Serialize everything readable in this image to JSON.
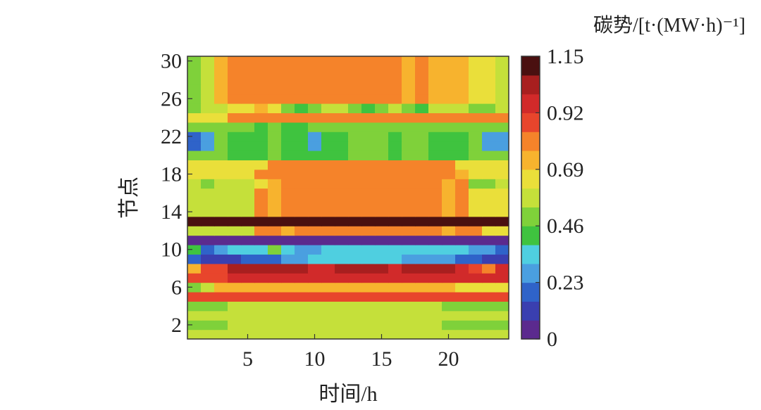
{
  "chart_data": {
    "type": "heatmap",
    "title": "",
    "xlabel": "时间/h",
    "ylabel": "节点",
    "x_range": [
      1,
      24
    ],
    "y_range": [
      1,
      30
    ],
    "x_ticks": [
      5,
      10,
      15,
      20
    ],
    "y_ticks": [
      2,
      6,
      10,
      14,
      18,
      22,
      26,
      30
    ],
    "colorbar": {
      "title": "碳势/[t·(MW·h)⁻¹]",
      "range": [
        0,
        1.15
      ],
      "ticks": [
        {
          "value": 0,
          "label": "0"
        },
        {
          "value": 0.23,
          "label": "0.23"
        },
        {
          "value": 0.46,
          "label": "0.46"
        },
        {
          "value": 0.69,
          "label": "0.69"
        },
        {
          "value": 0.92,
          "label": "0.92"
        },
        {
          "value": 1.15,
          "label": "1.15"
        }
      ],
      "colors": [
        "#5b2a8e",
        "#3a3fb0",
        "#2f63c9",
        "#4a9fe0",
        "#4fcfe0",
        "#3fc33f",
        "#7fd13a",
        "#c5e03a",
        "#eadf3a",
        "#f7b32e",
        "#f5832a",
        "#e8452c",
        "#d12a2a",
        "#a81f1f",
        "#4a1010"
      ]
    },
    "values_by_node": {
      "1": [
        0.56,
        0.56,
        0.56,
        0.56,
        0.56,
        0.56,
        0.56,
        0.56,
        0.56,
        0.56,
        0.56,
        0.56,
        0.56,
        0.56,
        0.56,
        0.56,
        0.56,
        0.56,
        0.56,
        0.56,
        0.56,
        0.56,
        0.56,
        0.56
      ],
      "2": [
        0.51,
        0.51,
        0.51,
        0.56,
        0.56,
        0.56,
        0.56,
        0.56,
        0.56,
        0.56,
        0.56,
        0.56,
        0.56,
        0.56,
        0.56,
        0.56,
        0.56,
        0.56,
        0.56,
        0.51,
        0.51,
        0.51,
        0.51,
        0.51
      ],
      "3": [
        0.56,
        0.56,
        0.56,
        0.56,
        0.56,
        0.56,
        0.56,
        0.56,
        0.56,
        0.56,
        0.56,
        0.56,
        0.56,
        0.56,
        0.56,
        0.56,
        0.56,
        0.56,
        0.56,
        0.56,
        0.56,
        0.56,
        0.56,
        0.56
      ],
      "4": [
        0.51,
        0.51,
        0.51,
        0.56,
        0.56,
        0.56,
        0.56,
        0.56,
        0.56,
        0.56,
        0.56,
        0.56,
        0.56,
        0.56,
        0.56,
        0.56,
        0.56,
        0.56,
        0.56,
        0.51,
        0.51,
        0.51,
        0.51,
        0.51
      ],
      "5": [
        0.88,
        0.88,
        0.88,
        0.88,
        0.88,
        0.88,
        0.88,
        0.88,
        0.88,
        0.88,
        0.88,
        0.88,
        0.88,
        0.88,
        0.88,
        0.88,
        0.88,
        0.88,
        0.88,
        0.88,
        0.88,
        0.88,
        0.88,
        0.88
      ],
      "6": [
        0.51,
        0.58,
        0.72,
        0.72,
        0.72,
        0.72,
        0.72,
        0.72,
        0.72,
        0.72,
        0.72,
        0.72,
        0.72,
        0.72,
        0.76,
        0.72,
        0.72,
        0.72,
        0.72,
        0.72,
        0.62,
        0.62,
        0.62,
        0.62
      ],
      "7": [
        0.88,
        0.88,
        0.88,
        0.96,
        0.96,
        0.96,
        0.96,
        0.96,
        0.96,
        0.96,
        0.96,
        0.96,
        0.96,
        0.96,
        0.96,
        0.96,
        0.96,
        0.96,
        0.96,
        0.96,
        0.96,
        0.96,
        0.96,
        0.96
      ],
      "8": [
        0.74,
        0.88,
        0.88,
        1.02,
        1.02,
        1.02,
        1.02,
        1.05,
        1.02,
        0.96,
        0.96,
        1.02,
        1.02,
        1.02,
        1.02,
        0.96,
        1.02,
        1.05,
        1.02,
        1.02,
        0.96,
        0.88,
        0.8,
        0.92
      ],
      "9": [
        0.18,
        0.12,
        0.12,
        0.14,
        0.16,
        0.16,
        0.18,
        0.24,
        0.26,
        0.32,
        0.38,
        0.38,
        0.38,
        0.38,
        0.38,
        0.32,
        0.26,
        0.26,
        0.3,
        0.26,
        0.22,
        0.18,
        0.14,
        0.12
      ],
      "10": [
        0.42,
        0.22,
        0.3,
        0.38,
        0.38,
        0.38,
        0.5,
        0.38,
        0.28,
        0.28,
        0.38,
        0.38,
        0.38,
        0.38,
        0.38,
        0.38,
        0.38,
        0.38,
        0.38,
        0.38,
        0.38,
        0.28,
        0.28,
        0.16
      ],
      "11": [
        0.06,
        0.06,
        0.06,
        0.06,
        0.06,
        0.06,
        0.06,
        0.06,
        0.06,
        0.06,
        0.06,
        0.06,
        0.06,
        0.06,
        0.06,
        0.06,
        0.06,
        0.06,
        0.06,
        0.06,
        0.06,
        0.06,
        0.06,
        0.06
      ],
      "12": [
        0.6,
        0.6,
        0.6,
        0.6,
        0.6,
        0.82,
        0.82,
        0.72,
        0.82,
        0.82,
        0.82,
        0.82,
        0.82,
        0.82,
        0.82,
        0.82,
        0.82,
        0.82,
        0.82,
        0.72,
        0.82,
        0.82,
        0.62,
        0.62
      ],
      "13": [
        1.12,
        1.12,
        1.12,
        1.12,
        1.12,
        1.12,
        1.12,
        1.12,
        1.12,
        1.12,
        1.12,
        1.12,
        1.12,
        1.12,
        1.12,
        1.12,
        1.12,
        1.12,
        1.12,
        1.12,
        1.12,
        1.12,
        1.12,
        1.12
      ],
      "14": [
        0.6,
        0.6,
        0.6,
        0.6,
        0.6,
        0.82,
        0.72,
        0.82,
        0.82,
        0.82,
        0.82,
        0.82,
        0.82,
        0.82,
        0.82,
        0.82,
        0.82,
        0.82,
        0.82,
        0.72,
        0.82,
        0.62,
        0.62,
        0.62
      ],
      "15": [
        0.6,
        0.6,
        0.6,
        0.6,
        0.6,
        0.82,
        0.72,
        0.82,
        0.82,
        0.82,
        0.82,
        0.82,
        0.82,
        0.82,
        0.82,
        0.82,
        0.82,
        0.82,
        0.82,
        0.72,
        0.82,
        0.62,
        0.62,
        0.62
      ],
      "16": [
        0.6,
        0.6,
        0.6,
        0.6,
        0.6,
        0.82,
        0.72,
        0.82,
        0.82,
        0.82,
        0.82,
        0.82,
        0.82,
        0.82,
        0.82,
        0.82,
        0.82,
        0.82,
        0.82,
        0.72,
        0.82,
        0.62,
        0.62,
        0.62
      ],
      "17": [
        0.55,
        0.48,
        0.58,
        0.58,
        0.58,
        0.62,
        0.72,
        0.82,
        0.82,
        0.82,
        0.82,
        0.82,
        0.82,
        0.82,
        0.82,
        0.82,
        0.82,
        0.82,
        0.82,
        0.72,
        0.82,
        0.52,
        0.5,
        0.55
      ],
      "18": [
        0.62,
        0.62,
        0.62,
        0.62,
        0.62,
        0.84,
        0.84,
        0.84,
        0.84,
        0.84,
        0.84,
        0.84,
        0.84,
        0.84,
        0.84,
        0.84,
        0.84,
        0.84,
        0.84,
        0.84,
        0.72,
        0.62,
        0.62,
        0.62
      ],
      "19": [
        0.62,
        0.62,
        0.62,
        0.62,
        0.62,
        0.62,
        0.84,
        0.84,
        0.84,
        0.84,
        0.84,
        0.84,
        0.84,
        0.84,
        0.84,
        0.84,
        0.84,
        0.84,
        0.84,
        0.84,
        0.62,
        0.62,
        0.62,
        0.62
      ],
      "20": [
        0.48,
        0.48,
        0.48,
        0.42,
        0.42,
        0.42,
        0.52,
        0.42,
        0.42,
        0.4,
        0.42,
        0.42,
        0.46,
        0.46,
        0.46,
        0.4,
        0.46,
        0.52,
        0.42,
        0.42,
        0.42,
        0.46,
        0.46,
        0.48
      ],
      "21": [
        0.18,
        0.24,
        0.46,
        0.42,
        0.42,
        0.42,
        0.52,
        0.4,
        0.42,
        0.3,
        0.42,
        0.42,
        0.46,
        0.46,
        0.46,
        0.4,
        0.46,
        0.52,
        0.42,
        0.42,
        0.42,
        0.46,
        0.3,
        0.3
      ],
      "22": [
        0.18,
        0.24,
        0.46,
        0.42,
        0.42,
        0.42,
        0.52,
        0.4,
        0.42,
        0.3,
        0.42,
        0.42,
        0.46,
        0.46,
        0.46,
        0.4,
        0.46,
        0.52,
        0.42,
        0.42,
        0.42,
        0.46,
        0.3,
        0.3
      ],
      "23": [
        0.46,
        0.46,
        0.46,
        0.46,
        0.46,
        0.42,
        0.52,
        0.42,
        0.42,
        0.46,
        0.46,
        0.46,
        0.46,
        0.46,
        0.46,
        0.46,
        0.46,
        0.46,
        0.46,
        0.46,
        0.46,
        0.46,
        0.46,
        0.46
      ],
      "24": [
        0.62,
        0.62,
        0.62,
        0.82,
        0.82,
        0.82,
        0.82,
        0.82,
        0.82,
        0.82,
        0.82,
        0.82,
        0.82,
        0.82,
        0.82,
        0.82,
        0.82,
        0.82,
        0.82,
        0.82,
        0.82,
        0.82,
        0.82,
        0.82
      ],
      "25": [
        0.52,
        0.58,
        0.58,
        0.62,
        0.62,
        0.72,
        0.62,
        0.5,
        0.42,
        0.5,
        0.58,
        0.58,
        0.5,
        0.42,
        0.5,
        0.58,
        0.5,
        0.42,
        0.58,
        0.58,
        0.58,
        0.46,
        0.46,
        0.58
      ],
      "26": [
        0.5,
        0.56,
        0.72,
        0.82,
        0.82,
        0.82,
        0.82,
        0.82,
        0.82,
        0.82,
        0.82,
        0.82,
        0.82,
        0.82,
        0.82,
        0.82,
        0.72,
        0.82,
        0.72,
        0.72,
        0.72,
        0.62,
        0.62,
        0.58
      ],
      "27": [
        0.5,
        0.56,
        0.72,
        0.82,
        0.82,
        0.82,
        0.82,
        0.82,
        0.82,
        0.82,
        0.82,
        0.82,
        0.82,
        0.82,
        0.82,
        0.82,
        0.72,
        0.82,
        0.72,
        0.72,
        0.72,
        0.62,
        0.62,
        0.58
      ],
      "28": [
        0.5,
        0.56,
        0.72,
        0.82,
        0.82,
        0.82,
        0.82,
        0.82,
        0.82,
        0.82,
        0.82,
        0.82,
        0.82,
        0.82,
        0.82,
        0.82,
        0.72,
        0.82,
        0.72,
        0.72,
        0.72,
        0.62,
        0.62,
        0.58
      ],
      "29": [
        0.5,
        0.56,
        0.72,
        0.82,
        0.82,
        0.82,
        0.82,
        0.82,
        0.82,
        0.82,
        0.82,
        0.82,
        0.82,
        0.82,
        0.82,
        0.82,
        0.72,
        0.82,
        0.72,
        0.72,
        0.72,
        0.62,
        0.62,
        0.58
      ],
      "30": [
        0.5,
        0.56,
        0.72,
        0.82,
        0.82,
        0.82,
        0.82,
        0.82,
        0.82,
        0.82,
        0.82,
        0.82,
        0.82,
        0.82,
        0.82,
        0.82,
        0.72,
        0.82,
        0.72,
        0.72,
        0.72,
        0.62,
        0.62,
        0.58
      ]
    }
  }
}
